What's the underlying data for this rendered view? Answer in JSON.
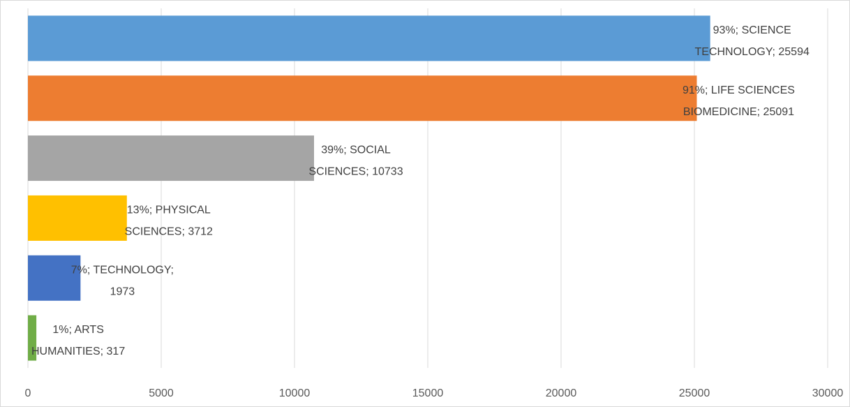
{
  "chart_data": {
    "type": "bar",
    "orientation": "horizontal",
    "title": "",
    "xlabel": "",
    "ylabel": "",
    "xlim": [
      0,
      30000
    ],
    "x_ticks": [
      0,
      5000,
      10000,
      15000,
      20000,
      25000,
      30000
    ],
    "x_tick_labels": [
      "0",
      "5000",
      "10000",
      "15000",
      "20000",
      "25000",
      "30000"
    ],
    "grid": "vertical",
    "legend": "none",
    "categories": [
      "SCIENCE TECHNOLOGY",
      "LIFE SCIENCES BIOMEDICINE",
      "SOCIAL SCIENCES",
      "PHYSICAL SCIENCES",
      "TECHNOLOGY",
      "ARTS HUMANITIES"
    ],
    "values": [
      25594,
      25091,
      10733,
      3712,
      1973,
      317
    ],
    "percentages": [
      "93%",
      "91%",
      "39%",
      "13%",
      "7%",
      "1%"
    ],
    "colors": [
      "#5B9BD5",
      "#ED7D31",
      "#A5A5A5",
      "#FFC000",
      "#4472C4",
      "#70AD47"
    ],
    "data_labels": [
      [
        "93%; SCIENCE",
        "TECHNOLOGY; 25594"
      ],
      [
        "91%; LIFE SCIENCES",
        "BIOMEDICINE; 25091"
      ],
      [
        "39%; SOCIAL",
        "SCIENCES; 10733"
      ],
      [
        "13%; PHYSICAL",
        "SCIENCES; 3712"
      ],
      [
        "7%; TECHNOLOGY;",
        "1973"
      ],
      [
        "1%; ARTS",
        "HUMANITIES; 317"
      ]
    ]
  }
}
